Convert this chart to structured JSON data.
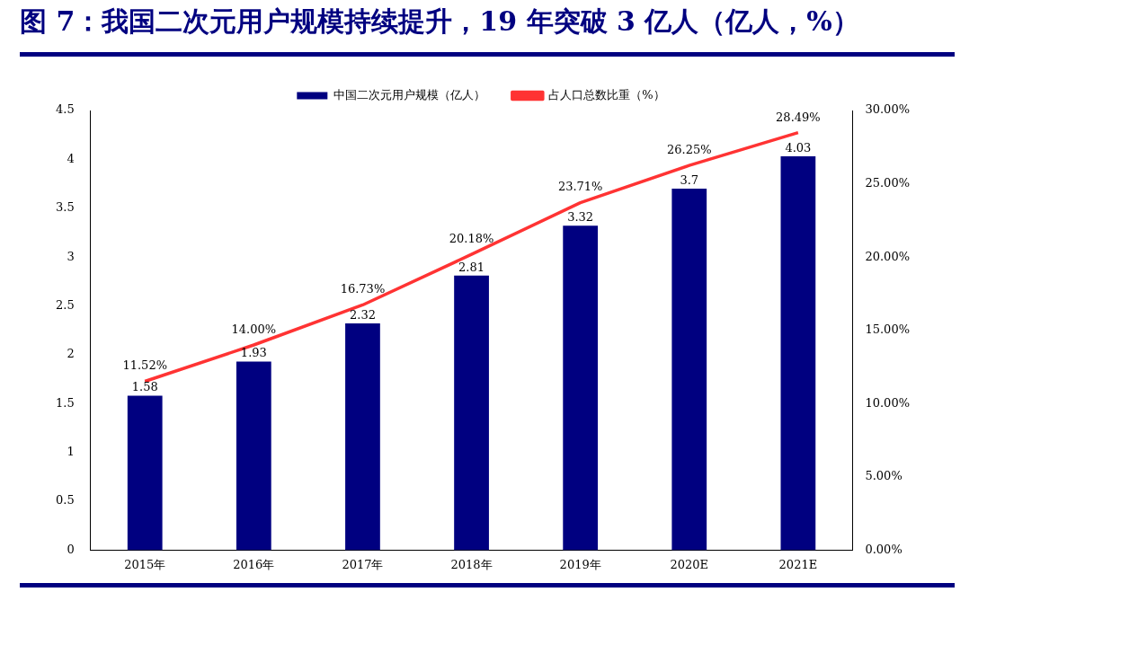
{
  "chart_data": {
    "type": "bar",
    "title": "图 7：我国二次元用户规模持续提升，19 年突破 3 亿人（亿人，%）",
    "categories": [
      "2015年",
      "2016年",
      "2017年",
      "2018年",
      "2019年",
      "2020E",
      "2021E"
    ],
    "series": [
      {
        "name": "中国二次元用户规模（亿人）",
        "color": "#000080",
        "values": [
          1.58,
          1.93,
          2.32,
          2.81,
          3.32,
          3.7,
          4.03
        ]
      },
      {
        "name": "占人口总数比重（%）",
        "type": "line",
        "axis": "y2",
        "color": "#ff3333",
        "values": [
          11.52,
          14.0,
          16.73,
          20.18,
          23.71,
          26.25,
          28.49
        ],
        "value_labels": [
          "11.52%",
          "14.00%",
          "16.73%",
          "20.18%",
          "23.71%",
          "26.25%",
          "28.49%"
        ]
      }
    ],
    "data_labels": true,
    "ylim": [
      0,
      4.5
    ],
    "yticks": [
      0,
      0.5,
      1,
      1.5,
      2,
      2.5,
      3,
      3.5,
      4,
      4.5
    ],
    "y2lim": [
      0,
      30
    ],
    "y2ticks": [
      {
        "value": 0,
        "label": "0.00%"
      },
      {
        "value": 5,
        "label": "5.00%"
      },
      {
        "value": 10,
        "label": "10.00%"
      },
      {
        "value": 15,
        "label": "15.00%"
      },
      {
        "value": 20,
        "label": "20.00%"
      },
      {
        "value": 25,
        "label": "25.00%"
      },
      {
        "value": 30,
        "label": "30.00%"
      }
    ],
    "grid": false,
    "legend": "top",
    "marker": "none",
    "line_style": "solid"
  }
}
